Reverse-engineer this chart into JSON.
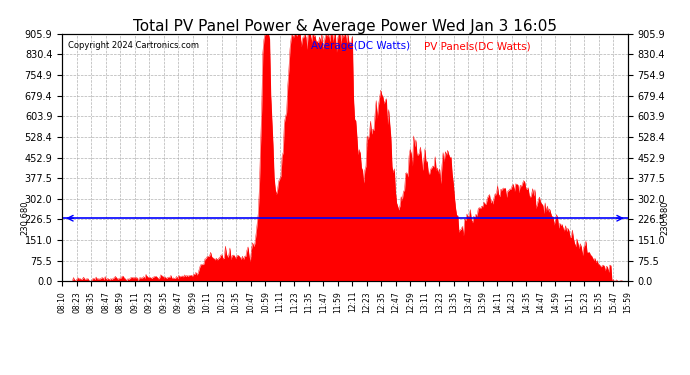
{
  "title": "Total PV Panel Power & Average Power Wed Jan 3 16:05",
  "copyright": "Copyright 2024 Cartronics.com",
  "legend_avg": "Average(DC Watts)",
  "legend_pv": "PV Panels(DC Watts)",
  "avg_value": 230.68,
  "y_max": 905.9,
  "y_ticks": [
    0.0,
    75.5,
    151.0,
    226.5,
    302.0,
    377.5,
    452.9,
    528.4,
    603.9,
    679.4,
    754.9,
    830.4,
    905.9
  ],
  "y_label_side": "230.680",
  "background_color": "#ffffff",
  "fill_color": "#ff0000",
  "line_color": "#0000ff",
  "grid_color": "#aaaaaa",
  "x_tick_labels": [
    "08:10",
    "08:23",
    "08:35",
    "08:47",
    "08:59",
    "09:11",
    "09:23",
    "09:35",
    "09:47",
    "09:59",
    "10:11",
    "10:23",
    "10:35",
    "10:47",
    "10:59",
    "11:11",
    "11:23",
    "11:35",
    "11:47",
    "11:59",
    "12:11",
    "12:23",
    "12:35",
    "12:47",
    "12:59",
    "13:11",
    "13:23",
    "13:35",
    "13:47",
    "13:59",
    "14:11",
    "14:23",
    "14:35",
    "14:47",
    "14:59",
    "15:11",
    "15:23",
    "15:35",
    "15:47",
    "15:59"
  ]
}
